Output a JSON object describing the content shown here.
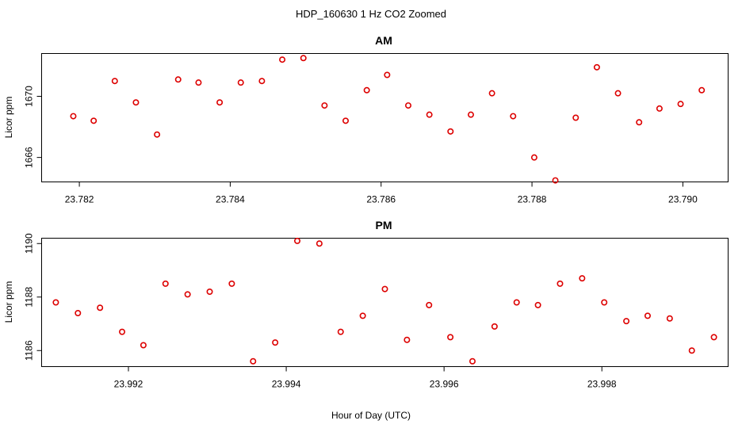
{
  "figure": {
    "title": "HDP_160630  1 Hz CO2 Zoomed",
    "xlabel": "Hour of Day (UTC)",
    "point_color": "#dd0000"
  },
  "chart_data": [
    {
      "type": "scatter",
      "title": "AM",
      "ylabel": "Licor ppm",
      "xlim": [
        23.7815,
        23.7906
      ],
      "ylim": [
        1664.4,
        1672.8
      ],
      "xticks": [
        {
          "value": 23.782,
          "label": "23.782"
        },
        {
          "value": 23.784,
          "label": "23.784"
        },
        {
          "value": 23.786,
          "label": "23.786"
        },
        {
          "value": 23.788,
          "label": "23.788"
        },
        {
          "value": 23.79,
          "label": "23.790"
        }
      ],
      "yticks": [
        {
          "value": 1666,
          "label": "1666"
        },
        {
          "value": 1670,
          "label": "1670"
        }
      ],
      "x": [
        23.78192,
        23.78219,
        23.78247,
        23.78275,
        23.78303,
        23.78331,
        23.78358,
        23.78386,
        23.78414,
        23.78442,
        23.78469,
        23.78497,
        23.78525,
        23.78553,
        23.78581,
        23.78608,
        23.78636,
        23.78664,
        23.78692,
        23.78719,
        23.78747,
        23.78775,
        23.78803,
        23.78831,
        23.78858,
        23.78886,
        23.78914,
        23.78942,
        23.78969,
        23.78997,
        23.79025
      ],
      "y": [
        1668.7,
        1668.4,
        1671.0,
        1669.6,
        1667.5,
        1671.1,
        1670.9,
        1669.6,
        1670.9,
        1671.0,
        1672.4,
        1672.5,
        1669.4,
        1668.4,
        1670.4,
        1671.4,
        1669.4,
        1668.8,
        1667.7,
        1668.8,
        1670.2,
        1668.7,
        1666.0,
        1664.5,
        1668.6,
        1671.9,
        1670.2,
        1668.3,
        1669.2,
        1669.5,
        1670.4
      ]
    },
    {
      "type": "scatter",
      "title": "PM",
      "ylabel": "Licor ppm",
      "xlim": [
        23.9909,
        23.9996
      ],
      "ylim": [
        1185.4,
        1190.2
      ],
      "xticks": [
        {
          "value": 23.992,
          "label": "23.992"
        },
        {
          "value": 23.994,
          "label": "23.994"
        },
        {
          "value": 23.996,
          "label": "23.996"
        },
        {
          "value": 23.998,
          "label": "23.998"
        }
      ],
      "yticks": [
        {
          "value": 1186,
          "label": "1186"
        },
        {
          "value": 1188,
          "label": "1188"
        },
        {
          "value": 1190,
          "label": "1190"
        }
      ],
      "x": [
        23.99108,
        23.99136,
        23.99164,
        23.99192,
        23.99219,
        23.99247,
        23.99275,
        23.99303,
        23.99331,
        23.99358,
        23.99386,
        23.99414,
        23.99442,
        23.99469,
        23.99497,
        23.99525,
        23.99553,
        23.99581,
        23.99608,
        23.99636,
        23.99664,
        23.99692,
        23.99719,
        23.99747,
        23.99775,
        23.99803,
        23.99831,
        23.99858,
        23.99886,
        23.99914,
        23.99942
      ],
      "y": [
        1187.8,
        1187.4,
        1187.6,
        1186.7,
        1186.2,
        1188.5,
        1188.1,
        1188.2,
        1188.5,
        1185.6,
        1186.3,
        1190.1,
        1190.0,
        1186.7,
        1187.3,
        1188.3,
        1186.4,
        1187.7,
        1186.5,
        1185.6,
        1186.9,
        1187.8,
        1187.7,
        1188.5,
        1188.7,
        1187.8,
        1187.1,
        1187.3,
        1187.2,
        1186.0,
        1186.5
      ]
    }
  ]
}
